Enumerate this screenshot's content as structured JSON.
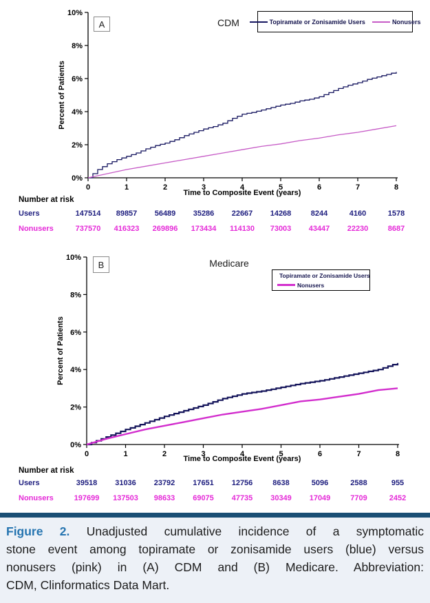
{
  "chart_data": [
    {
      "type": "line",
      "panel_letter": "A",
      "title": "CDM",
      "xlabel": "Time to Composite Event (years)",
      "ylabel": "Percent of Patients",
      "xlim": [
        0,
        8
      ],
      "ylim": [
        0,
        10
      ],
      "grid": false,
      "legend_position": "top-right-inside",
      "xticks": [
        [
          0,
          "0"
        ],
        [
          1,
          "1"
        ],
        [
          2,
          "2"
        ],
        [
          3,
          "3"
        ],
        [
          4,
          "4"
        ],
        [
          5,
          "5"
        ],
        [
          6,
          "6"
        ],
        [
          7,
          "7"
        ],
        [
          8,
          "8"
        ]
      ],
      "yticks": [
        [
          0,
          "0%"
        ],
        [
          2,
          "2%"
        ],
        [
          4,
          "4%"
        ],
        [
          6,
          "6%"
        ],
        [
          8,
          "8%"
        ],
        [
          10,
          "10%"
        ]
      ],
      "series": [
        {
          "name": "Topiramate or Zonisamide Users",
          "color": "#15155f",
          "width": 1.3,
          "style": "step",
          "points": [
            [
              0,
              0
            ],
            [
              0.25,
              0.5
            ],
            [
              0.5,
              0.85
            ],
            [
              0.75,
              1.1
            ],
            [
              1,
              1.3
            ],
            [
              1.25,
              1.5
            ],
            [
              1.5,
              1.75
            ],
            [
              1.75,
              1.95
            ],
            [
              2,
              2.1
            ],
            [
              2.25,
              2.3
            ],
            [
              2.5,
              2.55
            ],
            [
              2.75,
              2.75
            ],
            [
              3,
              2.95
            ],
            [
              3.25,
              3.1
            ],
            [
              3.5,
              3.3
            ],
            [
              3.75,
              3.6
            ],
            [
              4,
              3.85
            ],
            [
              4.25,
              3.95
            ],
            [
              4.5,
              4.1
            ],
            [
              4.75,
              4.25
            ],
            [
              5,
              4.4
            ],
            [
              5.25,
              4.5
            ],
            [
              5.5,
              4.65
            ],
            [
              5.75,
              4.75
            ],
            [
              6,
              4.9
            ],
            [
              6.25,
              5.15
            ],
            [
              6.5,
              5.4
            ],
            [
              6.75,
              5.6
            ],
            [
              7,
              5.75
            ],
            [
              7.25,
              5.95
            ],
            [
              7.5,
              6.1
            ],
            [
              7.75,
              6.25
            ],
            [
              8,
              6.4
            ]
          ]
        },
        {
          "name": "Nonusers",
          "color": "#c65ac6",
          "width": 1.3,
          "style": "line",
          "points": [
            [
              0,
              0
            ],
            [
              0.5,
              0.25
            ],
            [
              1,
              0.5
            ],
            [
              1.5,
              0.7
            ],
            [
              2,
              0.9
            ],
            [
              2.5,
              1.1
            ],
            [
              3,
              1.3
            ],
            [
              3.5,
              1.5
            ],
            [
              4,
              1.7
            ],
            [
              4.5,
              1.9
            ],
            [
              5,
              2.05
            ],
            [
              5.5,
              2.25
            ],
            [
              6,
              2.4
            ],
            [
              6.5,
              2.6
            ],
            [
              7,
              2.75
            ],
            [
              7.5,
              2.95
            ],
            [
              8,
              3.15
            ]
          ]
        }
      ],
      "risk_table": {
        "heading": "Number at risk",
        "rows": [
          {
            "label": "Users",
            "color": "#1d1d7e",
            "values": [
              "147514",
              "89857",
              "56489",
              "35286",
              "22667",
              "14268",
              "8244",
              "4160",
              "1578"
            ]
          },
          {
            "label": "Nonusers",
            "color": "#e52ad8",
            "values": [
              "737570",
              "416323",
              "269896",
              "173434",
              "114130",
              "73003",
              "43447",
              "22230",
              "8687"
            ]
          }
        ]
      }
    },
    {
      "type": "line",
      "panel_letter": "B",
      "title": "Medicare",
      "xlabel": "Time to Composite Event (years)",
      "ylabel": "Percent of Patients",
      "xlim": [
        0,
        8
      ],
      "ylim": [
        0,
        10
      ],
      "grid": false,
      "legend_position": "top-right-inside",
      "xticks": [
        [
          0,
          "0"
        ],
        [
          1,
          "1"
        ],
        [
          2,
          "2"
        ],
        [
          3,
          "3"
        ],
        [
          4,
          "4"
        ],
        [
          5,
          "5"
        ],
        [
          6,
          "6"
        ],
        [
          7,
          "7"
        ],
        [
          8,
          "8"
        ]
      ],
      "yticks": [
        [
          0,
          "0%"
        ],
        [
          2,
          "2%"
        ],
        [
          4,
          "4%"
        ],
        [
          6,
          "6%"
        ],
        [
          8,
          "8%"
        ],
        [
          10,
          "10%"
        ]
      ],
      "series": [
        {
          "name": "Topiramate or Zonisamide Users",
          "color": "#14145a",
          "width": 2.2,
          "style": "step",
          "points": [
            [
              0,
              0
            ],
            [
              0.5,
              0.4
            ],
            [
              1,
              0.8
            ],
            [
              1.5,
              1.15
            ],
            [
              2,
              1.5
            ],
            [
              2.5,
              1.8
            ],
            [
              3,
              2.1
            ],
            [
              3.5,
              2.45
            ],
            [
              4,
              2.7
            ],
            [
              4.5,
              2.85
            ],
            [
              5,
              3.05
            ],
            [
              5.5,
              3.25
            ],
            [
              6,
              3.4
            ],
            [
              6.5,
              3.6
            ],
            [
              7,
              3.8
            ],
            [
              7.5,
              4.0
            ],
            [
              8,
              4.35
            ]
          ]
        },
        {
          "name": "Nonusers",
          "color": "#d22dcd",
          "width": 2.4,
          "style": "line",
          "points": [
            [
              0,
              0
            ],
            [
              0.5,
              0.3
            ],
            [
              1,
              0.55
            ],
            [
              1.5,
              0.8
            ],
            [
              2,
              1.0
            ],
            [
              2.5,
              1.2
            ],
            [
              3,
              1.4
            ],
            [
              3.5,
              1.6
            ],
            [
              4,
              1.75
            ],
            [
              4.5,
              1.9
            ],
            [
              5,
              2.1
            ],
            [
              5.5,
              2.3
            ],
            [
              6,
              2.4
            ],
            [
              6.5,
              2.55
            ],
            [
              7,
              2.7
            ],
            [
              7.5,
              2.9
            ],
            [
              8,
              3.0
            ]
          ]
        }
      ],
      "risk_table": {
        "heading": "Number at risk",
        "rows": [
          {
            "label": "Users",
            "color": "#1d1d7e",
            "values": [
              "39518",
              "31036",
              "23792",
              "17651",
              "12756",
              "8638",
              "5096",
              "2588",
              "955"
            ]
          },
          {
            "label": "Nonusers",
            "color": "#e52ad8",
            "values": [
              "197699",
              "137503",
              "98633",
              "69075",
              "47735",
              "30349",
              "17049",
              "7709",
              "2452"
            ]
          }
        ]
      }
    }
  ],
  "caption": {
    "label": "Figure 2.",
    "label_color": "#2574b0",
    "bar_color": "#1a4e74",
    "background_color": "#edf1f7",
    "lines": [
      "Unadjusted cumulative incidence of a symptomatic",
      "stone event among topiramate or zonisamide users (blue) versus",
      "nonusers (pink) in (A) CDM and (B) Medicare. Abbreviation:",
      "CDM, Clinformatics Data Mart."
    ]
  }
}
